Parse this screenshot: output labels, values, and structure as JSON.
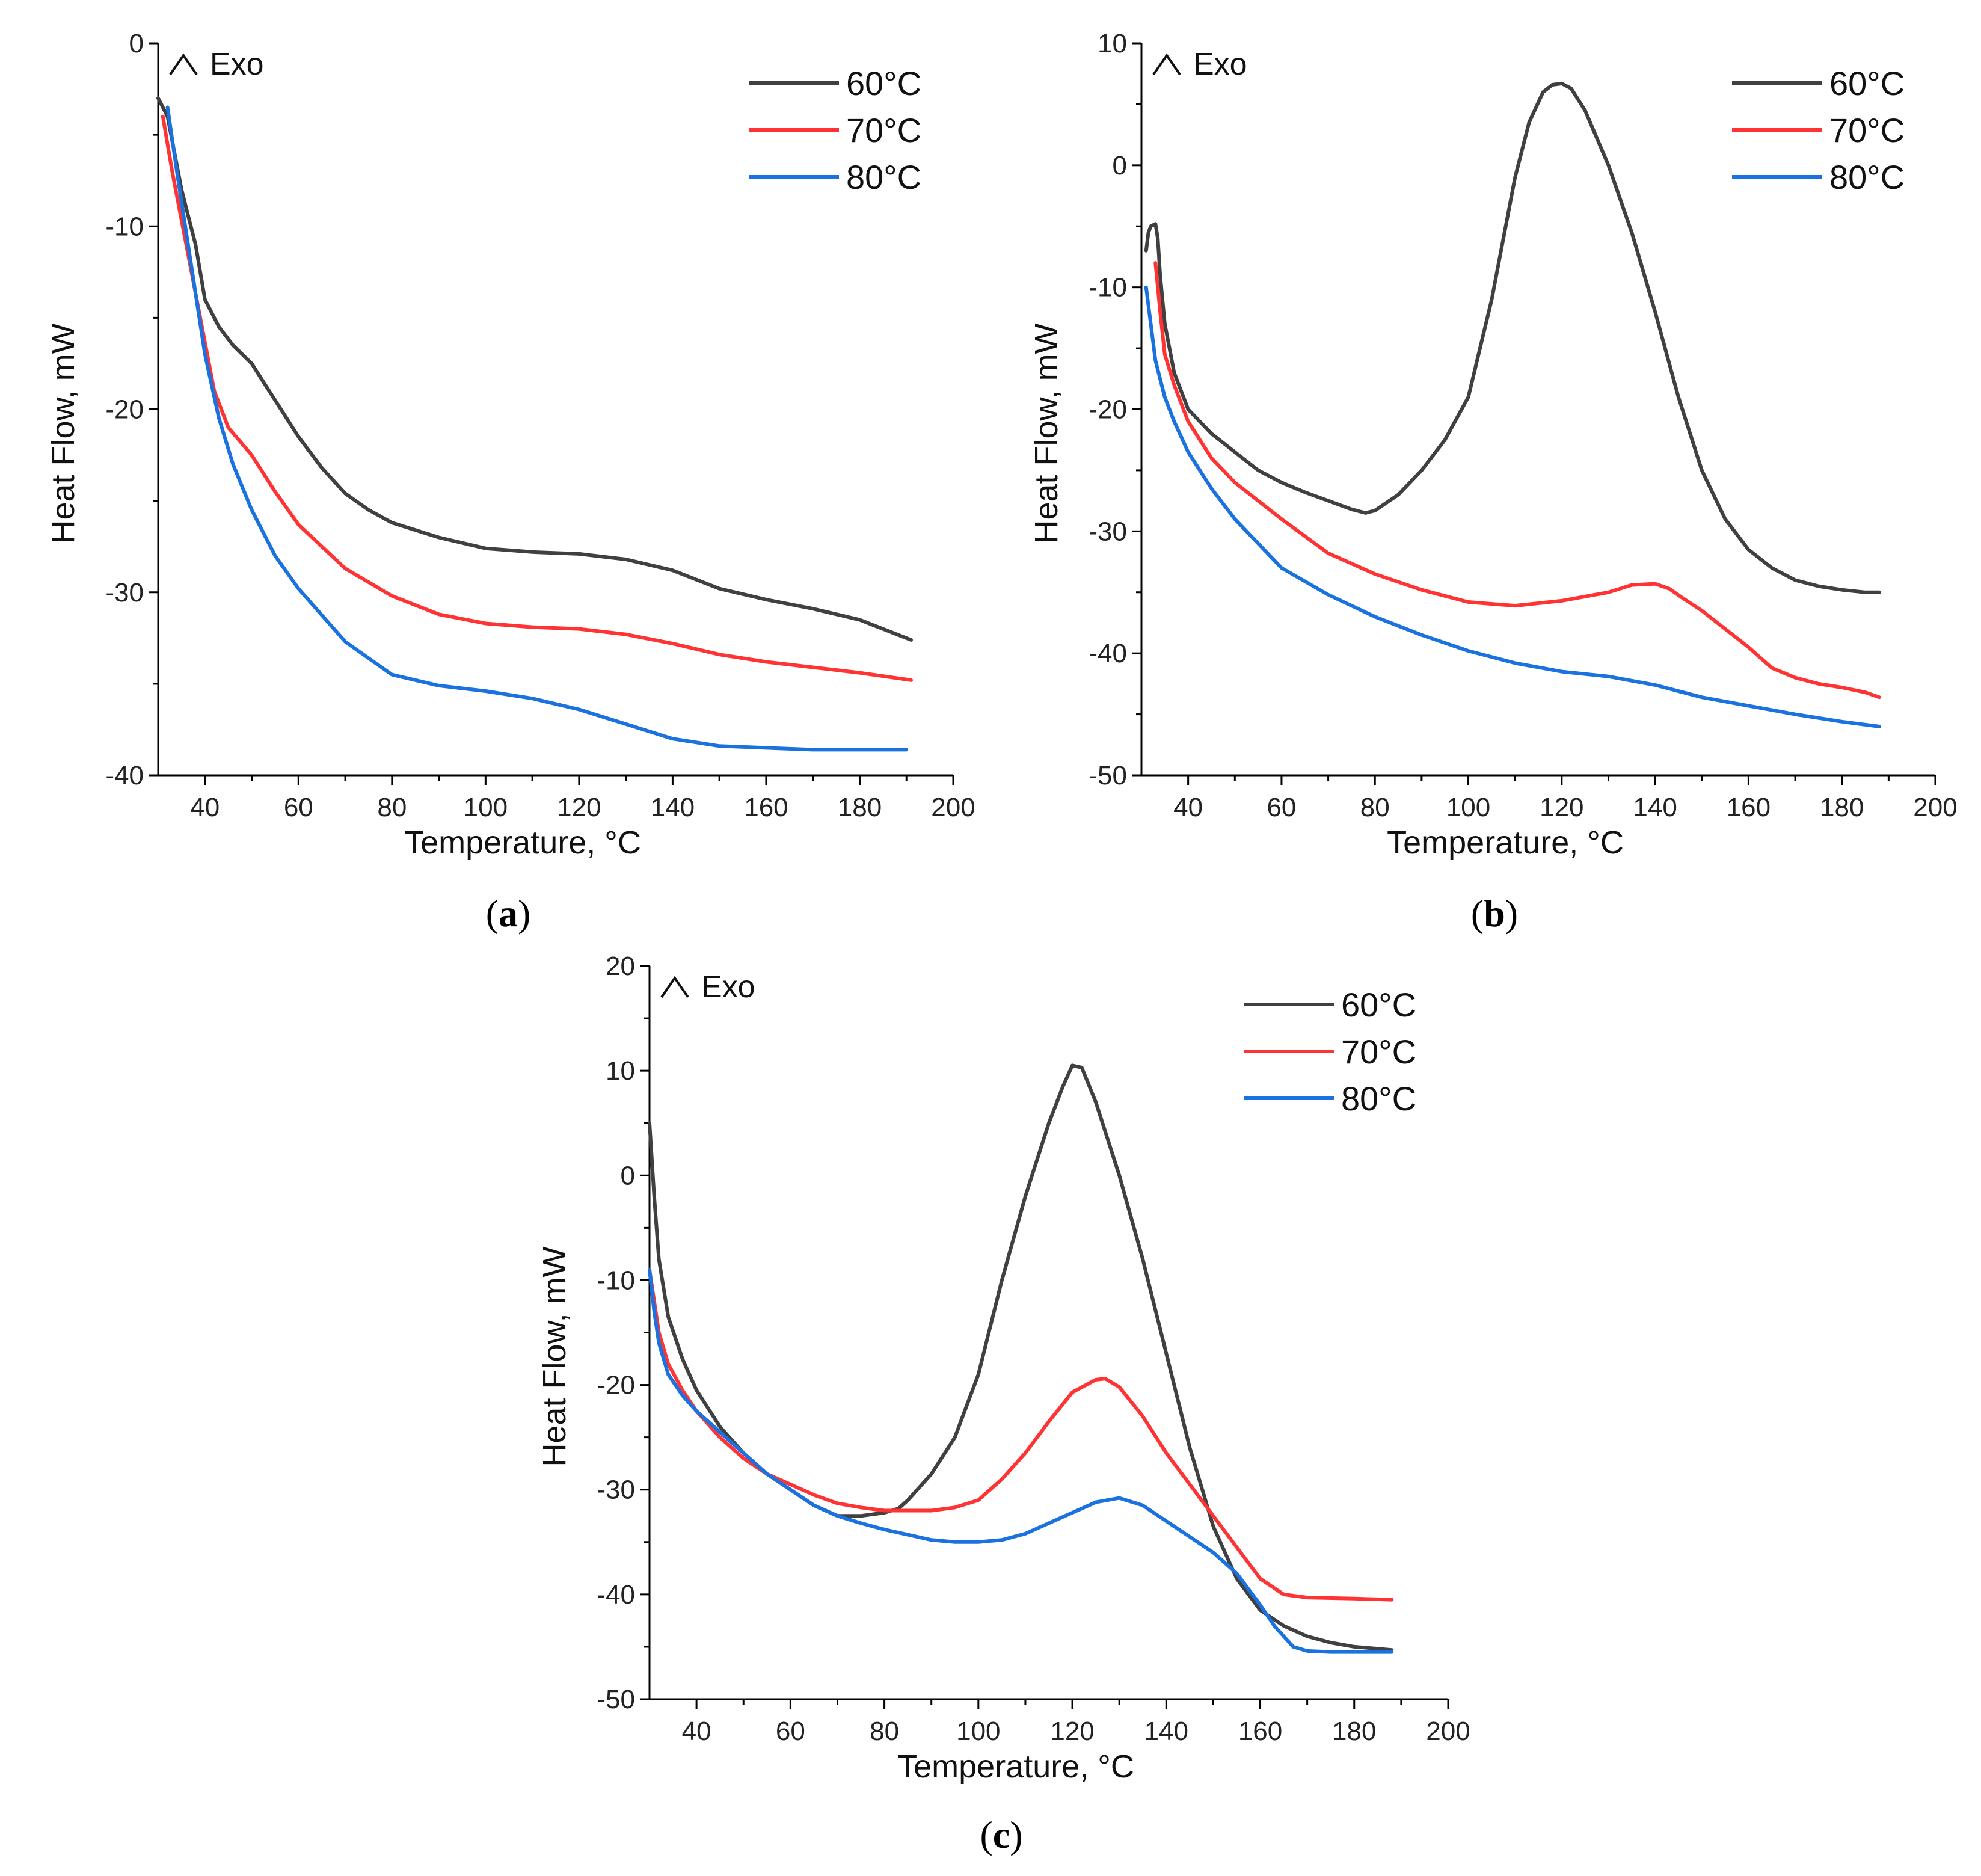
{
  "chart_data": [
    {
      "type": "line",
      "panel_label": "a",
      "annotation": "Exo",
      "xlabel": "Temperature, °C",
      "ylabel": "Heat Flow, mW",
      "xlim": [
        30,
        200
      ],
      "ylim": [
        -40,
        0
      ],
      "xticks": [
        40,
        60,
        80,
        100,
        120,
        140,
        160,
        180,
        200
      ],
      "yticks": [
        0,
        -10,
        -20,
        -30,
        -40
      ],
      "legend_position": "top-right",
      "series": [
        {
          "name": "60°C",
          "color": "#404040",
          "x": [
            30,
            32,
            35,
            38,
            40,
            43,
            46,
            50,
            55,
            60,
            65,
            70,
            75,
            80,
            85,
            90,
            100,
            110,
            120,
            130,
            140,
            150,
            160,
            170,
            180,
            191
          ],
          "y": [
            -3,
            -4,
            -8,
            -11,
            -14,
            -15.5,
            -16.5,
            -17.5,
            -19.5,
            -21.5,
            -23.2,
            -24.6,
            -25.5,
            -26.2,
            -26.6,
            -27,
            -27.6,
            -27.8,
            -27.9,
            -28.2,
            -28.8,
            -29.8,
            -30.4,
            -30.9,
            -31.5,
            -32.6
          ]
        },
        {
          "name": "70°C",
          "color": "#ff3333",
          "x": [
            31,
            33,
            36,
            39,
            42,
            45,
            50,
            55,
            60,
            70,
            80,
            90,
            100,
            110,
            120,
            130,
            140,
            150,
            160,
            170,
            180,
            191
          ],
          "y": [
            -4,
            -7,
            -11,
            -15,
            -19,
            -21,
            -22.5,
            -24.5,
            -26.3,
            -28.7,
            -30.2,
            -31.2,
            -31.7,
            -31.9,
            -32,
            -32.3,
            -32.8,
            -33.4,
            -33.8,
            -34.1,
            -34.4,
            -34.8
          ]
        },
        {
          "name": "80°C",
          "color": "#1a72e0",
          "x": [
            32,
            34,
            37,
            40,
            43,
            46,
            50,
            55,
            60,
            70,
            80,
            85,
            90,
            100,
            110,
            120,
            130,
            140,
            150,
            160,
            170,
            180,
            190
          ],
          "y": [
            -3.5,
            -7,
            -12,
            -17,
            -20.5,
            -23,
            -25.5,
            -28,
            -29.8,
            -32.7,
            -34.5,
            -34.8,
            -35.1,
            -35.4,
            -35.8,
            -36.4,
            -37.2,
            -38,
            -38.4,
            -38.5,
            -38.6,
            -38.6,
            -38.6
          ]
        }
      ]
    },
    {
      "type": "line",
      "panel_label": "b",
      "annotation": "Exo",
      "xlabel": "Temperature, °C",
      "ylabel": "Heat Flow, mW",
      "xlim": [
        30,
        200
      ],
      "ylim": [
        -50,
        10
      ],
      "xticks": [
        40,
        60,
        80,
        100,
        120,
        140,
        160,
        180,
        200
      ],
      "yticks": [
        10,
        0,
        -10,
        -20,
        -30,
        -40,
        -50
      ],
      "legend_position": "top-right",
      "series": [
        {
          "name": "60°C",
          "color": "#404040",
          "x": [
            31,
            31.5,
            32,
            33,
            33.5,
            34,
            35,
            37,
            40,
            45,
            50,
            55,
            60,
            65,
            70,
            75,
            78,
            80,
            85,
            90,
            95,
            100,
            105,
            110,
            113,
            116,
            118,
            120,
            122,
            125,
            130,
            135,
            140,
            145,
            150,
            155,
            160,
            165,
            170,
            175,
            180,
            185,
            188
          ],
          "y": [
            -7,
            -5.5,
            -5,
            -4.8,
            -6,
            -9,
            -13,
            -17,
            -20,
            -22,
            -23.5,
            -25,
            -26,
            -26.8,
            -27.5,
            -28.2,
            -28.5,
            -28.3,
            -27,
            -25,
            -22.5,
            -19,
            -11,
            -1,
            3.5,
            6,
            6.6,
            6.7,
            6.3,
            4.5,
            0,
            -5.5,
            -12,
            -19,
            -25,
            -29,
            -31.5,
            -33,
            -34,
            -34.5,
            -34.8,
            -35,
            -35
          ]
        },
        {
          "name": "70°C",
          "color": "#ff3333",
          "x": [
            33,
            34,
            35,
            37,
            40,
            45,
            50,
            55,
            60,
            70,
            80,
            90,
            100,
            110,
            120,
            130,
            135,
            140,
            143,
            146,
            150,
            155,
            160,
            165,
            170,
            175,
            180,
            185,
            188
          ],
          "y": [
            -8,
            -12,
            -15.5,
            -18,
            -21,
            -24,
            -26,
            -27.5,
            -29,
            -31.8,
            -33.5,
            -34.8,
            -35.8,
            -36.1,
            -35.7,
            -35,
            -34.4,
            -34.3,
            -34.7,
            -35.5,
            -36.5,
            -38,
            -39.5,
            -41.2,
            -42,
            -42.5,
            -42.8,
            -43.2,
            -43.6
          ]
        },
        {
          "name": "80°C",
          "color": "#1a72e0",
          "x": [
            31,
            32,
            33,
            35,
            37,
            40,
            45,
            50,
            55,
            60,
            70,
            80,
            90,
            100,
            110,
            120,
            130,
            140,
            150,
            160,
            170,
            180,
            188
          ],
          "y": [
            -10,
            -13,
            -16,
            -19,
            -21,
            -23.5,
            -26.5,
            -29,
            -31,
            -33,
            -35.2,
            -37,
            -38.5,
            -39.8,
            -40.8,
            -41.5,
            -41.9,
            -42.6,
            -43.6,
            -44.3,
            -45,
            -45.6,
            -46
          ]
        }
      ]
    },
    {
      "type": "line",
      "panel_label": "c",
      "annotation": "Exo",
      "xlabel": "Temperature, °C",
      "ylabel": "Heat Flow, mW",
      "xlim": [
        30,
        200
      ],
      "ylim": [
        -50,
        20
      ],
      "xticks": [
        40,
        60,
        80,
        100,
        120,
        140,
        160,
        180,
        200
      ],
      "yticks": [
        20,
        10,
        0,
        -10,
        -20,
        -30,
        -40,
        -50
      ],
      "legend_position": "top-right",
      "series": [
        {
          "name": "60°C",
          "color": "#404040",
          "x": [
            30,
            31,
            32,
            34,
            37,
            40,
            45,
            50,
            55,
            60,
            65,
            70,
            75,
            80,
            83,
            85,
            90,
            95,
            100,
            105,
            110,
            115,
            118,
            120,
            122,
            125,
            130,
            135,
            140,
            145,
            150,
            155,
            160,
            165,
            170,
            175,
            180,
            188
          ],
          "y": [
            5,
            -2,
            -8,
            -13.5,
            -17.5,
            -20.5,
            -24,
            -26.5,
            -28.5,
            -30,
            -31.5,
            -32.5,
            -32.5,
            -32.2,
            -31.8,
            -31,
            -28.5,
            -25,
            -19,
            -10,
            -2,
            5,
            8.5,
            10.5,
            10.3,
            7,
            0,
            -8,
            -17,
            -26,
            -33.5,
            -38.5,
            -41.5,
            -43,
            -44,
            -44.6,
            -45,
            -45.3
          ]
        },
        {
          "name": "70°C",
          "color": "#ff3333",
          "x": [
            30,
            31,
            32,
            34,
            37,
            40,
            45,
            50,
            55,
            60,
            65,
            70,
            75,
            80,
            85,
            90,
            95,
            100,
            105,
            110,
            115,
            120,
            125,
            127,
            130,
            135,
            140,
            145,
            150,
            155,
            160,
            165,
            170,
            180,
            188
          ],
          "y": [
            -9,
            -12,
            -15,
            -18,
            -20.5,
            -22.5,
            -25,
            -27,
            -28.5,
            -29.5,
            -30.5,
            -31.3,
            -31.7,
            -32,
            -32,
            -32,
            -31.7,
            -31,
            -29,
            -26.5,
            -23.5,
            -20.7,
            -19.5,
            -19.4,
            -20.2,
            -23,
            -26.5,
            -29.5,
            -32.5,
            -35.5,
            -38.5,
            -40,
            -40.3,
            -40.4,
            -40.5
          ]
        },
        {
          "name": "80°C",
          "color": "#1a72e0",
          "x": [
            30,
            31,
            32,
            34,
            37,
            40,
            45,
            50,
            55,
            60,
            65,
            70,
            75,
            80,
            85,
            90,
            95,
            100,
            105,
            110,
            115,
            120,
            125,
            130,
            135,
            140,
            145,
            150,
            155,
            160,
            163,
            167,
            170,
            175,
            180,
            188
          ],
          "y": [
            -9,
            -13,
            -16,
            -19,
            -21,
            -22.5,
            -24.5,
            -26.5,
            -28.5,
            -30,
            -31.5,
            -32.5,
            -33.2,
            -33.8,
            -34.3,
            -34.8,
            -35,
            -35,
            -34.8,
            -34.2,
            -33.2,
            -32.2,
            -31.2,
            -30.8,
            -31.5,
            -33,
            -34.5,
            -36,
            -38,
            -41,
            -43,
            -45,
            -45.4,
            -45.5,
            -45.5,
            -45.5
          ]
        }
      ]
    }
  ]
}
